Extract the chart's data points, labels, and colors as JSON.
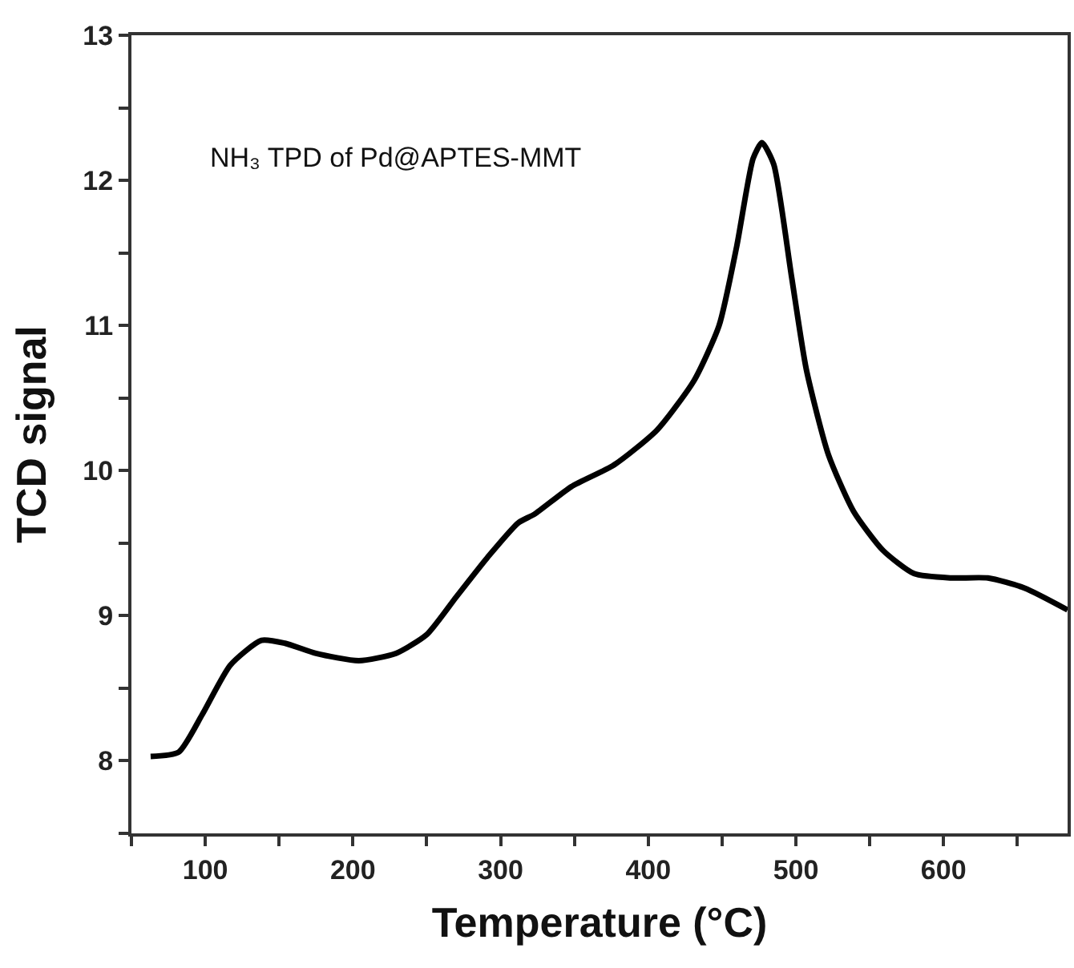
{
  "chart_data": {
    "type": "line",
    "xlabel": "Temperature (°C)",
    "ylabel": "TCD signal",
    "annotations": [
      "NH₃ TPD of Pd@APTES-MMT"
    ],
    "series": [
      {
        "color": "#000000",
        "x": [
          63,
          82,
          98,
          117,
          138,
          154,
          175,
          204,
          229,
          250,
          270,
          291,
          312,
          323,
          348,
          377,
          406,
          431,
          448,
          460,
          471,
          477,
          485,
          497,
          507,
          522,
          539,
          559,
          580,
          605,
          630,
          655,
          684
        ],
        "values": [
          8.03,
          8.06,
          8.32,
          8.66,
          8.83,
          8.81,
          8.74,
          8.69,
          8.74,
          8.87,
          9.13,
          9.4,
          9.64,
          9.7,
          9.89,
          10.04,
          10.28,
          10.62,
          11.0,
          11.55,
          12.15,
          12.26,
          12.11,
          11.34,
          10.7,
          10.11,
          9.72,
          9.45,
          9.29,
          9.26,
          9.26,
          9.19,
          9.04
        ]
      }
    ],
    "xlim": [
      50,
      684
    ],
    "ylim": [
      7.5,
      13
    ],
    "xticks": [
      {
        "value": 50,
        "label": null
      },
      100,
      {
        "value": 150,
        "label": null
      },
      200,
      {
        "value": 250,
        "label": null
      },
      300,
      {
        "value": 350,
        "label": null
      },
      400,
      {
        "value": 450,
        "label": null
      },
      500,
      {
        "value": 550,
        "label": null
      },
      600,
      {
        "value": 650,
        "label": null
      }
    ],
    "yticks": [
      {
        "value": 7.5,
        "label": null
      },
      8,
      {
        "value": 8.5,
        "label": null
      },
      9,
      {
        "value": 9.5,
        "label": null
      },
      10,
      {
        "value": 10.5,
        "label": null
      },
      11,
      {
        "value": 11.5,
        "label": null
      },
      12,
      {
        "value": 12.5,
        "label": null
      },
      13
    ],
    "marker": "none",
    "line_style": "solid"
  }
}
